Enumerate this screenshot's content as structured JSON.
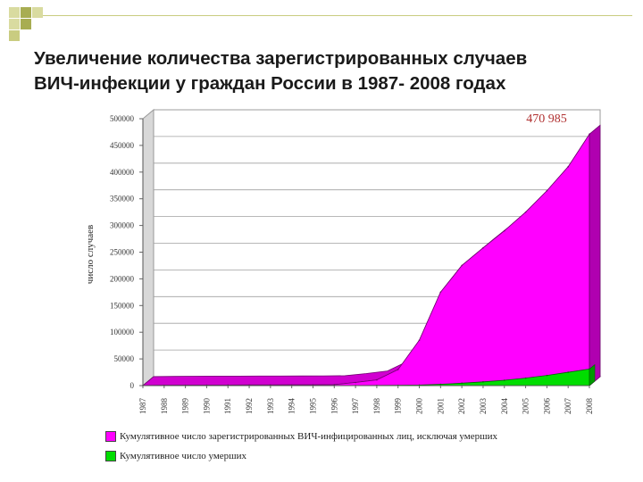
{
  "title": {
    "line1": "Увеличение количества зарегистрированных случаев",
    "line2": "ВИЧ-инфекции у граждан России в 1987- 2008 годах"
  },
  "colors": {
    "accent_square_light": "#d9dba0",
    "accent_square_dark": "#a8ad52",
    "registered": "#ff00ff",
    "registered_side": "#b000b0",
    "deaths": "#00dd00",
    "deaths_side": "#009900",
    "annotation": "#b03030"
  },
  "chart_data": {
    "type": "area",
    "x": [
      "1987",
      "1988",
      "1989",
      "1990",
      "1991",
      "1992",
      "1993",
      "1994",
      "1995",
      "1996",
      "1997",
      "1998",
      "1999",
      "2000",
      "2001",
      "2002",
      "2003",
      "2004",
      "2005",
      "2006",
      "2007",
      "2008"
    ],
    "series": [
      {
        "name": "Кумулятивное число зарегистрированных ВИЧ-инфицированных лиц, исключая умерших",
        "values": [
          100,
          500,
          800,
          1000,
          1100,
          1200,
          1300,
          1400,
          1500,
          1800,
          5800,
          10700,
          30000,
          85000,
          175000,
          225000,
          258000,
          290000,
          325000,
          365000,
          410000,
          470985
        ]
      },
      {
        "name": "Кумулятивное число умерших",
        "values": [
          0,
          0,
          0,
          0,
          0,
          0,
          0,
          0,
          0,
          100,
          200,
          300,
          500,
          1000,
          2500,
          4500,
          7000,
          10000,
          14000,
          19000,
          25000,
          31000
        ]
      }
    ],
    "annotation": "470 985",
    "ylabel": "число случаев",
    "yticks": [
      "0",
      "50000",
      "100000",
      "150000",
      "200000",
      "250000",
      "300000",
      "350000",
      "400000",
      "450000",
      "500000"
    ],
    "ylim": [
      0,
      500000
    ],
    "grid": true,
    "legend_position": "bottom"
  }
}
